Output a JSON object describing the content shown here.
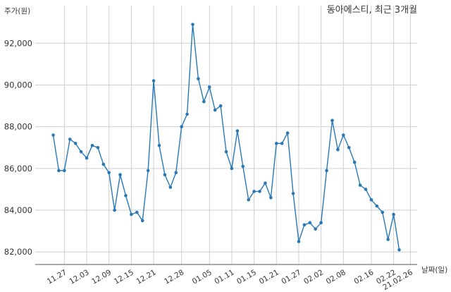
{
  "chart_data": {
    "type": "line",
    "title": "동아에스티, 최근 3개월",
    "ylabel": "주가(원)",
    "xlabel": "날짜(일)",
    "ylim": [
      81400,
      93800
    ],
    "grid": true,
    "yticks": [
      82000,
      84000,
      86000,
      88000,
      90000,
      92000
    ],
    "ytick_labels": [
      "82,000",
      "84,000",
      "86,000",
      "88,000",
      "90,000",
      "92,000"
    ],
    "xtick_labels": [
      "11.27",
      "12.03",
      "12.09",
      "12.15",
      "12.21",
      "12.28",
      "01.05",
      "01.11",
      "01.15",
      "01.21",
      "01.27",
      "02.02",
      "02.08",
      "02.16",
      "02.22",
      "21.02.26"
    ],
    "xtick_index": [
      2,
      6,
      10,
      14,
      18,
      23,
      28,
      32,
      36,
      40,
      44,
      48,
      52,
      57,
      61,
      64
    ],
    "series": [
      {
        "color": "#2878b5",
        "values": [
          87600,
          85900,
          85900,
          87400,
          87200,
          86800,
          86500,
          87100,
          87000,
          86200,
          85800,
          84000,
          85700,
          84700,
          83800,
          83900,
          83500,
          85900,
          90200,
          87100,
          85700,
          85100,
          85800,
          88000,
          88600,
          92900,
          90300,
          89200,
          89900,
          88800,
          89000,
          86800,
          86000,
          87800,
          86100,
          84500,
          84900,
          84900,
          85300,
          84600,
          87200,
          87200,
          87700,
          84800,
          82500,
          83300,
          83400,
          83100,
          83400,
          85900,
          88300,
          86900,
          87600,
          87000,
          86300,
          85200,
          85000,
          84500,
          84200,
          83900,
          82600,
          83800,
          82100
        ]
      }
    ]
  }
}
